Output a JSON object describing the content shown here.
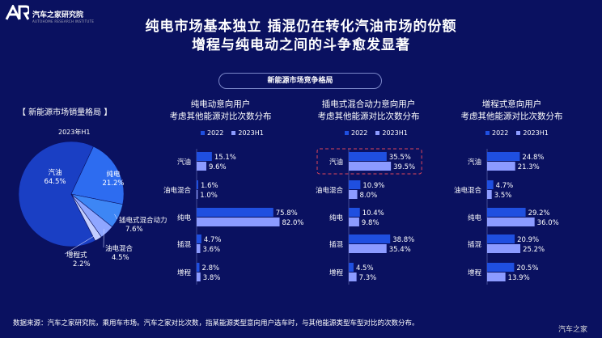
{
  "brand": {
    "name": "汽车之家研究院",
    "sub": "AUTOHOME RESEARCH INSTITUTE"
  },
  "title_line1": "纯电市场基本独立  插混仍在转化汽油市场的份额",
  "title_line2": "增程与纯电动之间的斗争愈发显著",
  "section_pill": "新能源市场竞争格局",
  "market_title": "【 新能源市场销量格局 】",
  "source_note": "数据来源：汽车之家研究院，乘用车市场。汽车之家对比次数，指某能源类型意向用户选车时，与其他能源类型车型对比的次数分布。",
  "watermark": "汽车之家",
  "colors": {
    "bg": "#0a1160",
    "series2022": "#1f4fe0",
    "series2023": "#8c9bff",
    "highlight": "#e0465a"
  },
  "chart_data": [
    {
      "type": "pie",
      "title": "2023年H1",
      "slices": [
        {
          "label": "汽油",
          "value": 64.5,
          "display": "64.5%"
        },
        {
          "label": "纯电",
          "value": 21.2,
          "display": "21.2%"
        },
        {
          "label": "插电式混合动力",
          "value": 7.6,
          "display": "7.6%"
        },
        {
          "label": "油电混合",
          "value": 4.5,
          "display": "4.5%"
        },
        {
          "label": "增程式",
          "value": 2.2,
          "display": "2.2%"
        }
      ]
    },
    {
      "type": "bar",
      "title": [
        "纯电动意向用户",
        "考虑其他能源对比次数分布"
      ],
      "categories": [
        "汽油",
        "油电混合",
        "纯电",
        "插混",
        "增程"
      ],
      "series": [
        {
          "name": "2022",
          "values": [
            15.1,
            1.6,
            75.8,
            4.7,
            2.8
          ]
        },
        {
          "name": "2023H1",
          "values": [
            9.6,
            1.0,
            82.0,
            3.6,
            3.8
          ]
        }
      ]
    },
    {
      "type": "bar",
      "title": [
        "插电式混合动力意向用户",
        "考虑其他能源对比次数分布"
      ],
      "categories": [
        "汽油",
        "油电混合",
        "纯电",
        "插混",
        "增程"
      ],
      "highlight": "汽油",
      "series": [
        {
          "name": "2022",
          "values": [
            35.5,
            10.9,
            10.4,
            38.8,
            4.5
          ]
        },
        {
          "name": "2023H1",
          "values": [
            39.5,
            8.0,
            9.8,
            35.4,
            7.3
          ]
        }
      ]
    },
    {
      "type": "bar",
      "title": [
        "增程式意向用户",
        "考虑其他能源对比次数分布"
      ],
      "categories": [
        "汽油",
        "油电混合",
        "纯电",
        "插混",
        "增程"
      ],
      "series": [
        {
          "name": "2022",
          "values": [
            24.8,
            4.7,
            29.2,
            20.9,
            20.5
          ]
        },
        {
          "name": "2023H1",
          "values": [
            21.3,
            3.5,
            36.0,
            25.2,
            13.9
          ]
        }
      ]
    }
  ]
}
